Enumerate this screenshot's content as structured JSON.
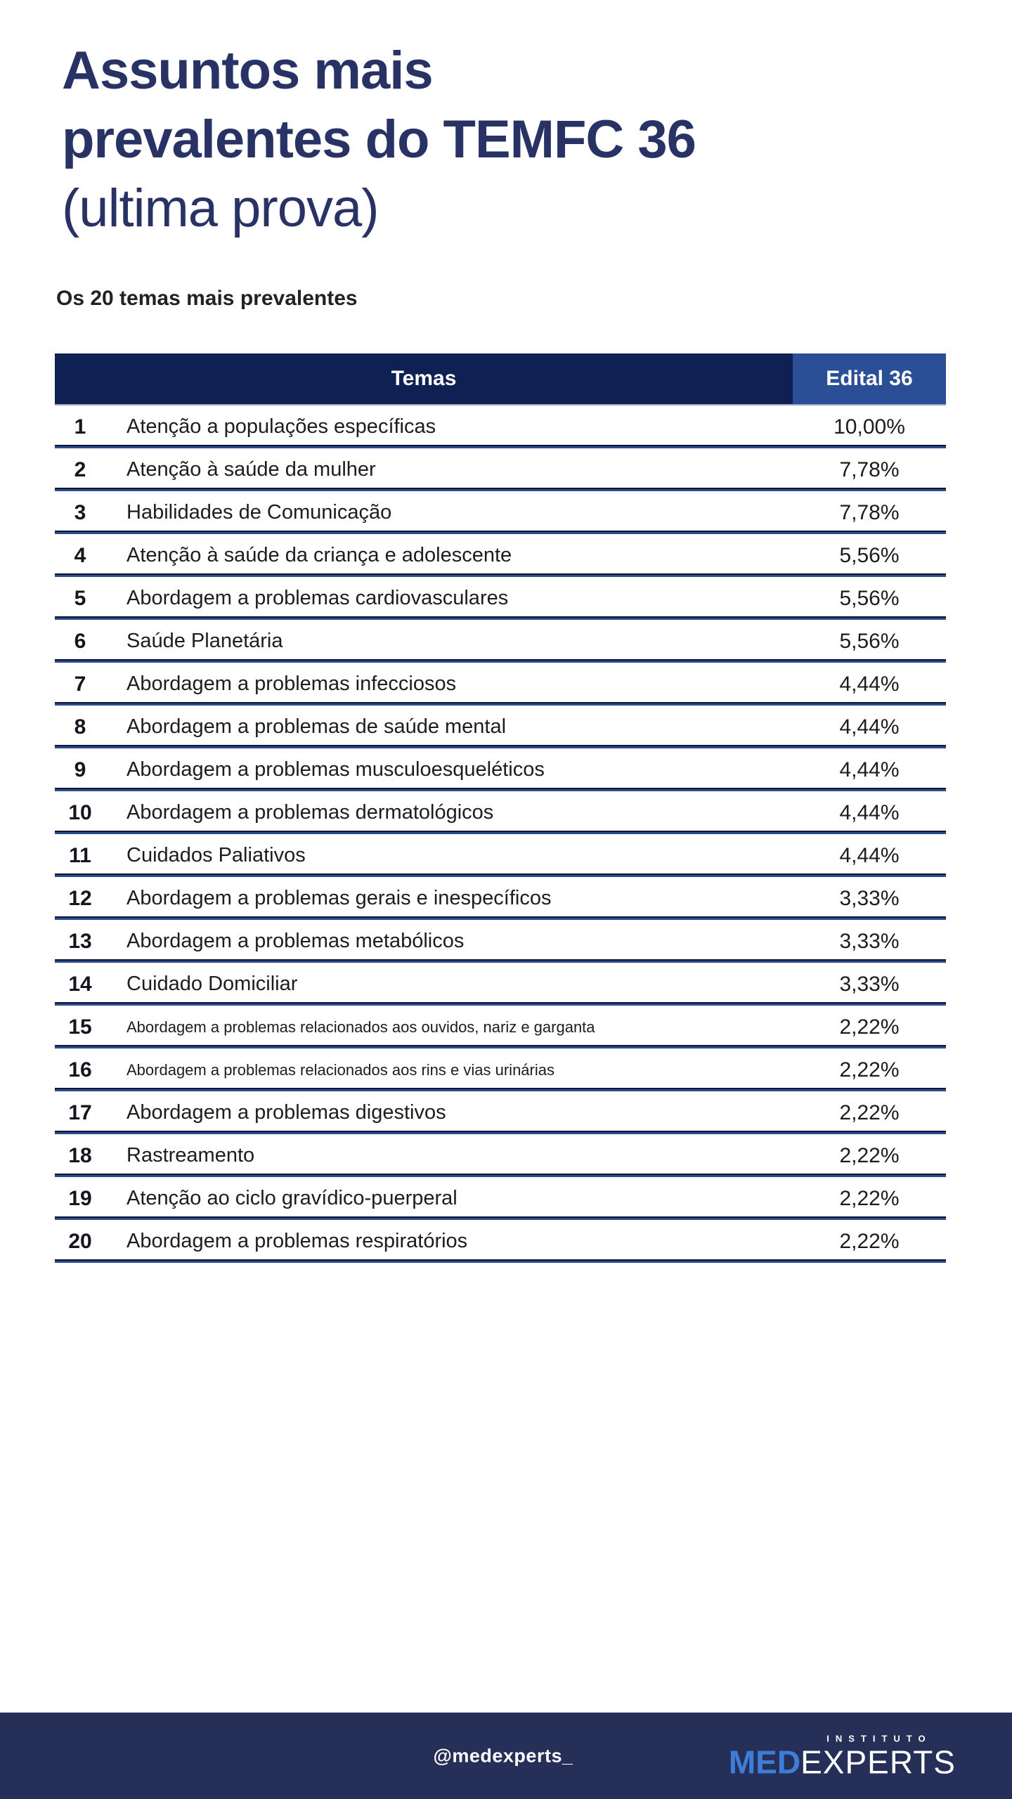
{
  "header": {
    "title_line1": "Assuntos mais",
    "title_line2": "prevalentes do TEMFC 36",
    "title_line3": "(ultima prova)",
    "subtitle": "Os 20 temas mais prevalentes"
  },
  "table": {
    "columns": {
      "temas": "Temas",
      "edital": "Edital 36"
    },
    "rows": [
      {
        "rank": "1",
        "tema": "Atenção a populações específicas",
        "pct": "10,00%"
      },
      {
        "rank": "2",
        "tema": "Atenção à saúde da mulher",
        "pct": "7,78%"
      },
      {
        "rank": "3",
        "tema": "Habilidades de Comunicação",
        "pct": "7,78%"
      },
      {
        "rank": "4",
        "tema": "Atenção à saúde da criança e adolescente",
        "pct": "5,56%"
      },
      {
        "rank": "5",
        "tema": "Abordagem a problemas cardiovasculares",
        "pct": "5,56%"
      },
      {
        "rank": "6",
        "tema": "Saúde Planetária",
        "pct": "5,56%"
      },
      {
        "rank": "7",
        "tema": "Abordagem a problemas infecciosos",
        "pct": "4,44%"
      },
      {
        "rank": "8",
        "tema": "Abordagem a problemas de saúde mental",
        "pct": "4,44%"
      },
      {
        "rank": "9",
        "tema": "Abordagem a problemas musculoesqueléticos",
        "pct": "4,44%"
      },
      {
        "rank": "10",
        "tema": "Abordagem a problemas dermatológicos",
        "pct": "4,44%"
      },
      {
        "rank": "11",
        "tema": "Cuidados Paliativos",
        "pct": "4,44%"
      },
      {
        "rank": "12",
        "tema": "Abordagem a problemas gerais e inespecíficos",
        "pct": "3,33%"
      },
      {
        "rank": "13",
        "tema": "Abordagem a problemas metabólicos",
        "pct": "3,33%"
      },
      {
        "rank": "14",
        "tema": "Cuidado Domiciliar",
        "pct": "3,33%"
      },
      {
        "rank": "15",
        "tema": "Abordagem a problemas relacionados aos ouvidos, nariz e garganta",
        "pct": "2,22%",
        "small": true
      },
      {
        "rank": "16",
        "tema": "Abordagem a problemas relacionados aos rins e vias urinárias",
        "pct": "2,22%",
        "small": true
      },
      {
        "rank": "17",
        "tema": "Abordagem a problemas digestivos",
        "pct": "2,22%"
      },
      {
        "rank": "18",
        "tema": "Rastreamento",
        "pct": "2,22%"
      },
      {
        "rank": "19",
        "tema": "Atenção ao ciclo gravídico-puerperal",
        "pct": "2,22%"
      },
      {
        "rank": "20",
        "tema": "Abordagem a problemas respiratórios",
        "pct": "2,22%"
      }
    ]
  },
  "footer": {
    "handle": "@medexperts_",
    "logo_top": "INSTITUTO",
    "logo_med": "MED",
    "logo_experts": "EXPERTS"
  },
  "colors": {
    "title_navy": "#293264",
    "table_header_bg": "#0e2152",
    "edital_cell_bg": "#2b4f96",
    "separator_dark": "#0c1533",
    "separator_blue": "#2a4b8c",
    "body_text": "#1d1d1d",
    "footer_bg": "#262f58",
    "logo_blue": "#3c7ed8"
  }
}
